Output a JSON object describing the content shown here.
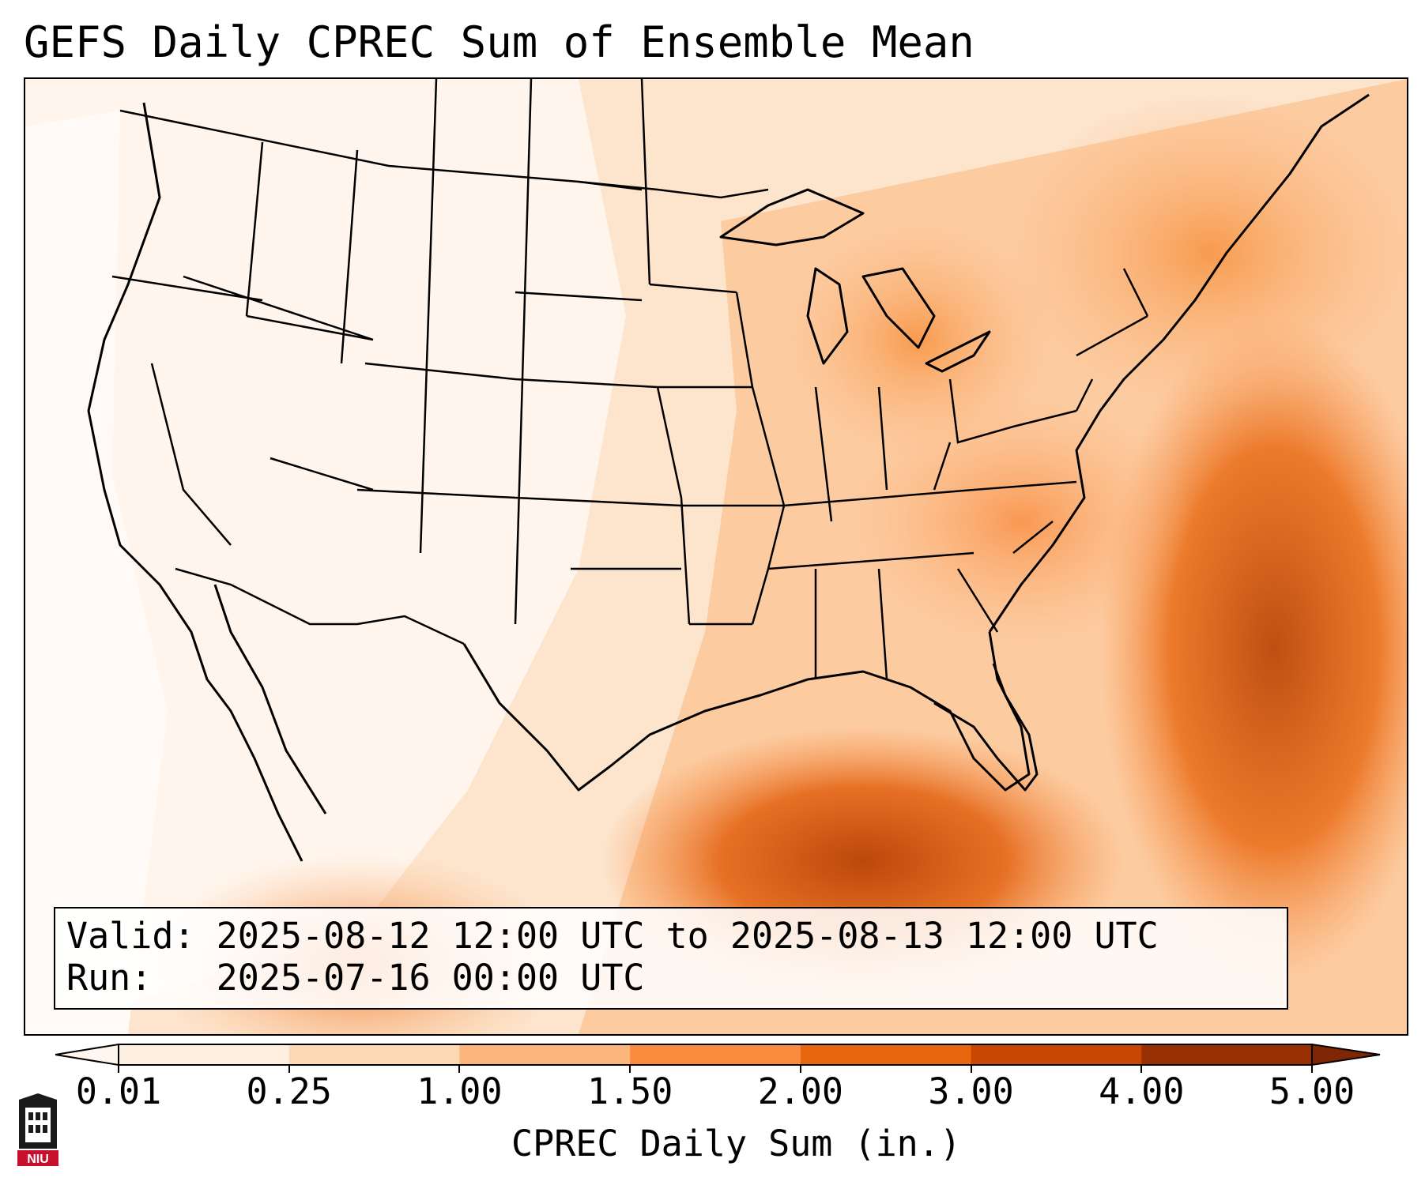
{
  "title": "GEFS Daily CPREC Sum of Ensemble Mean",
  "info": {
    "valid_label": "Valid:",
    "valid_value": "2025-08-12 12:00 UTC to 2025-08-13 12:00 UTC",
    "run_label": "Run:",
    "run_value": "2025-07-16 00:00 UTC"
  },
  "colorbar": {
    "label": "CPREC Daily Sum (in.)",
    "ticks": [
      "0.01",
      "0.25",
      "1.00",
      "1.50",
      "2.00",
      "3.00",
      "4.00",
      "5.00"
    ],
    "colors": [
      "#fef0e1",
      "#fdd9b5",
      "#fcb57d",
      "#f98b3f",
      "#e8660e",
      "#c74703",
      "#993003"
    ],
    "extend": "both"
  },
  "logo": {
    "text": "NIU",
    "primary_color": "#c8102e"
  },
  "map": {
    "region": "Contiguous United States",
    "colormap": "Oranges"
  }
}
